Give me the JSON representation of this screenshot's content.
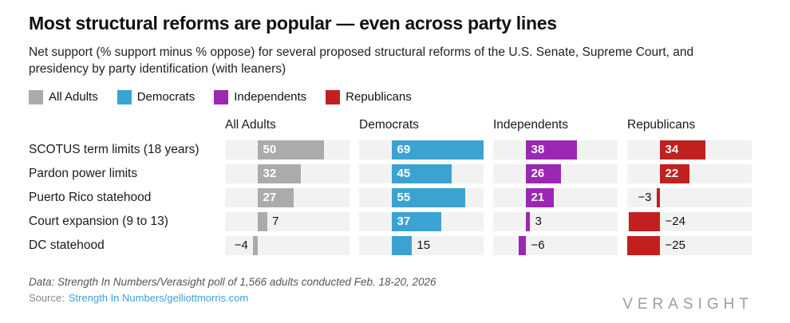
{
  "header": {
    "title": "Most structural reforms are popular — even across party lines",
    "subtitle": "Net support (% support minus % oppose) for several proposed structural reforms of the U.S. Senate, Supreme Court, and presidency by party identification (with leaners)"
  },
  "colors": {
    "all_adults": "#ababab",
    "democrats": "#3aa3d2",
    "independents": "#9c27b5",
    "republicans": "#c1201e",
    "track_background": "#f2f2f2",
    "link_blue": "#3da0d8",
    "inside_label": "#ffffff",
    "outside_label": "#111111"
  },
  "legend": {
    "items": [
      {
        "label": "All Adults",
        "color": "#ababab"
      },
      {
        "label": "Democrats",
        "color": "#3aa3d2"
      },
      {
        "label": "Independents",
        "color": "#9c27b5"
      },
      {
        "label": "Republicans",
        "color": "#c1201e"
      }
    ]
  },
  "chart_data": {
    "type": "bar",
    "orientation": "horizontal",
    "value_range": [
      -25,
      69
    ],
    "grid": false,
    "legend_position": "top",
    "title": "Most structural reforms are popular — even across party lines",
    "xlabel": "",
    "ylabel": "",
    "categories": [
      "SCOTUS term limits (18 years)",
      "Pardon power limits",
      "Puerto Rico statehood",
      "Court expansion (9 to 13)",
      "DC statehood"
    ],
    "series": [
      {
        "name": "All Adults",
        "color": "#ababab",
        "values": [
          50,
          32,
          27,
          7,
          -4
        ],
        "label_positions": [
          "inside",
          "inside",
          "inside",
          "right",
          "left"
        ]
      },
      {
        "name": "Democrats",
        "color": "#3aa3d2",
        "values": [
          69,
          45,
          55,
          37,
          15
        ],
        "label_positions": [
          "inside",
          "inside",
          "inside",
          "inside",
          "right"
        ]
      },
      {
        "name": "Independents",
        "color": "#9c27b5",
        "values": [
          38,
          26,
          21,
          3,
          -6
        ],
        "label_positions": [
          "inside",
          "inside",
          "inside",
          "right",
          "right"
        ]
      },
      {
        "name": "Republicans",
        "color": "#c1201e",
        "values": [
          34,
          22,
          -3,
          -24,
          -25
        ],
        "label_positions": [
          "inside",
          "inside",
          "left",
          "right",
          "right"
        ]
      }
    ]
  },
  "footer": {
    "data_note": "Data: Strength In Numbers/Verasight poll of 1,566 adults conducted Feb. 18-20, 2026",
    "source_label": "Source:",
    "source_link": "Strength In Numbers/gelliottmorris.com",
    "logo_text": "VERASIGHT"
  }
}
